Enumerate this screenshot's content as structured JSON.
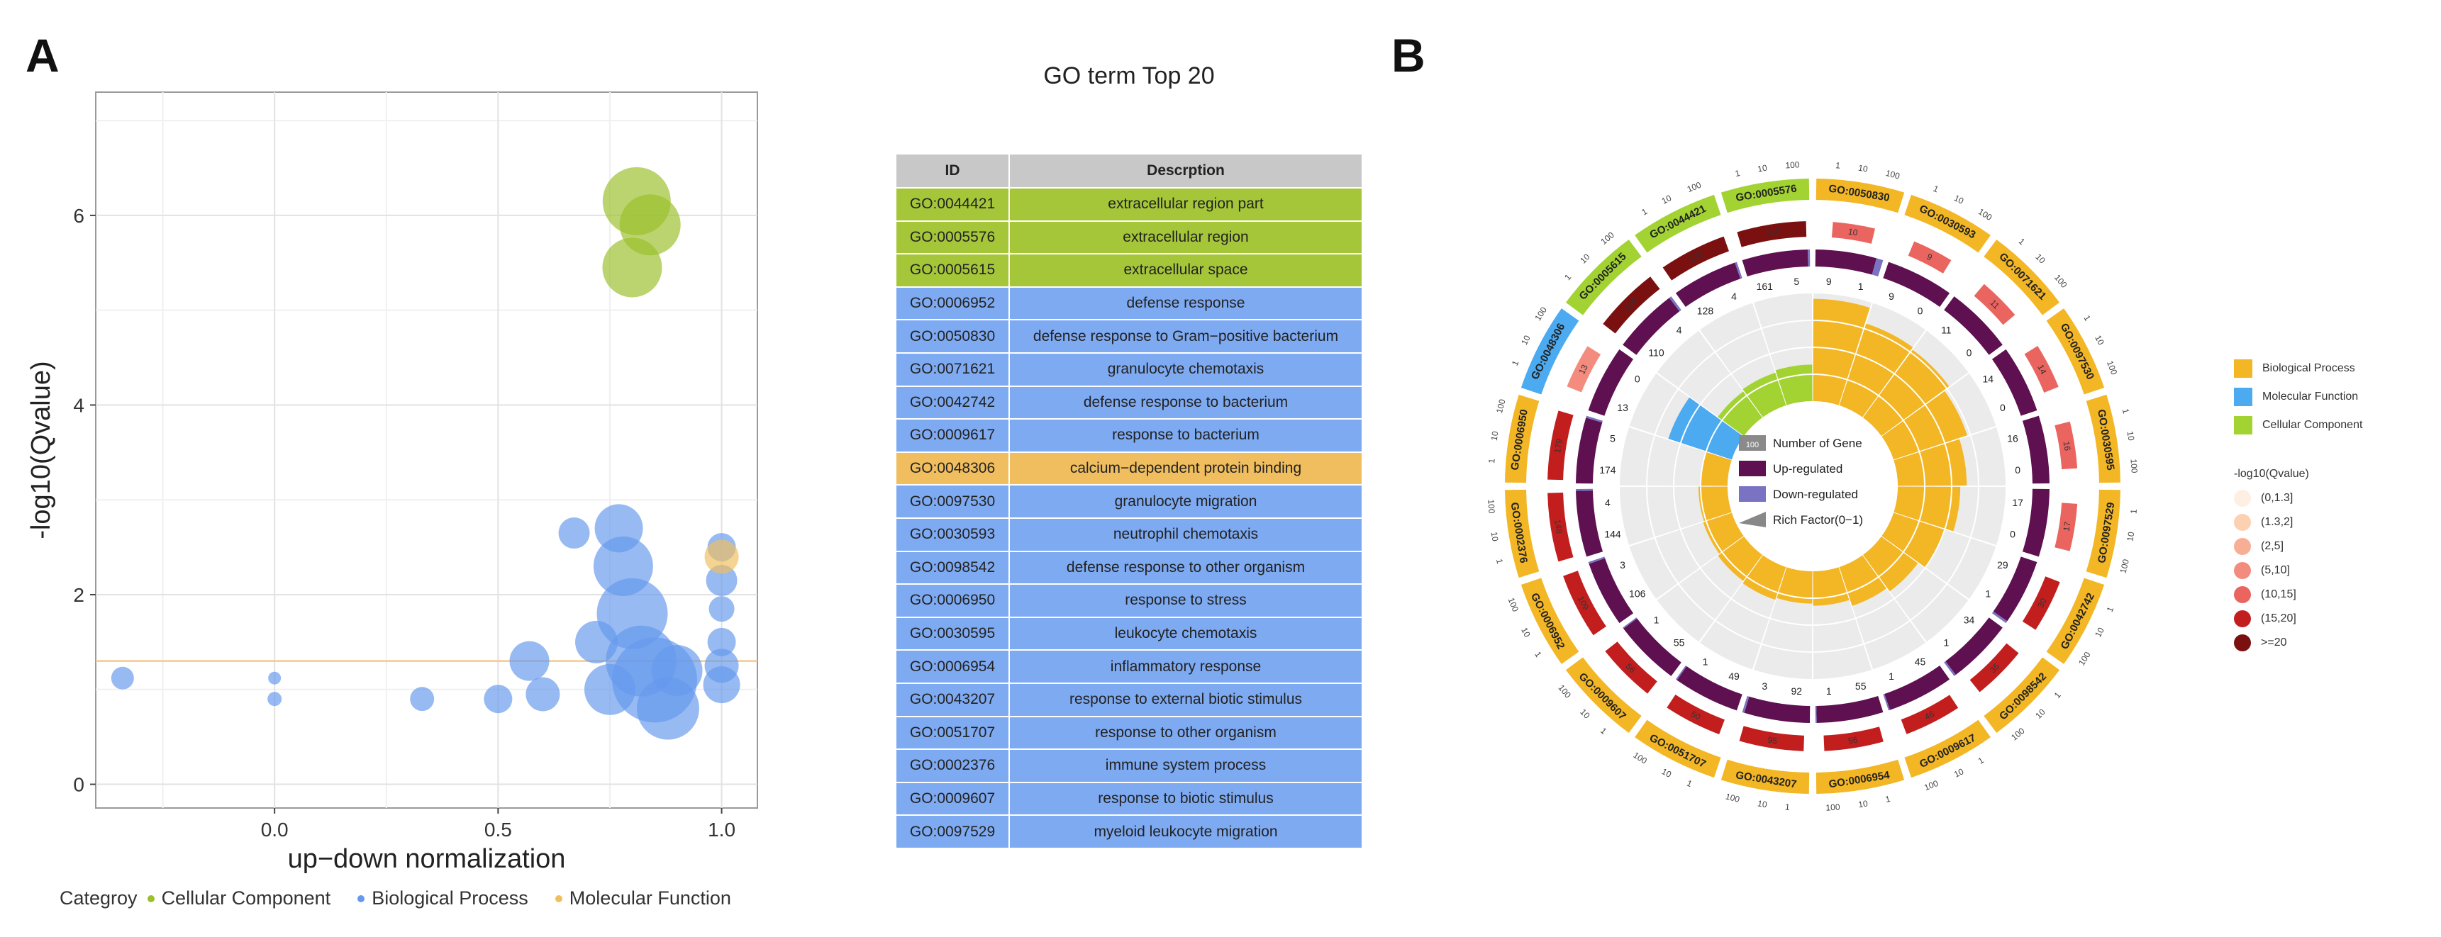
{
  "panelA": {
    "letter": "A",
    "legend_title": "Categroy",
    "legend": [
      {
        "label": "Cellular Component",
        "color": "#9bc02b"
      },
      {
        "label": "Biological Process",
        "color": "#6699ee"
      },
      {
        "label": "Molecular Function",
        "color": "#f0be5f"
      }
    ]
  },
  "panelB": {
    "letter": "B"
  },
  "chart_data": [
    {
      "type": "scatter",
      "title": "",
      "xlabel": "up−down normalization",
      "ylabel": "-log10(Qvalue)",
      "xlim": [
        -0.4,
        1.08
      ],
      "ylim": [
        -0.25,
        7.3
      ],
      "xticks": [
        "0.0",
        "0.5",
        "1.0"
      ],
      "xtick_values": [
        0,
        0.5,
        1
      ],
      "yticks": [
        "0",
        "2",
        "4",
        "6"
      ],
      "ytick_values": [
        0,
        2,
        4,
        6
      ],
      "threshold_y": 1.3,
      "grid": true,
      "points": [
        {
          "x": 0.81,
          "y": 6.15,
          "size": 48,
          "cat": "Cellular Component"
        },
        {
          "x": 0.84,
          "y": 5.9,
          "size": 43,
          "cat": "Cellular Component"
        },
        {
          "x": 0.8,
          "y": 5.45,
          "size": 42,
          "cat": "Cellular Component"
        },
        {
          "x": 1.0,
          "y": 2.4,
          "size": 24,
          "cat": "Molecular Function"
        },
        {
          "x": -0.34,
          "y": 1.12,
          "size": 16,
          "cat": "Biological Process"
        },
        {
          "x": 0.0,
          "y": 1.12,
          "size": 9,
          "cat": "Biological Process"
        },
        {
          "x": 0.0,
          "y": 0.9,
          "size": 10,
          "cat": "Biological Process"
        },
        {
          "x": 0.33,
          "y": 0.9,
          "size": 17,
          "cat": "Biological Process"
        },
        {
          "x": 0.5,
          "y": 0.9,
          "size": 20,
          "cat": "Biological Process"
        },
        {
          "x": 0.57,
          "y": 1.3,
          "size": 28,
          "cat": "Biological Process"
        },
        {
          "x": 0.6,
          "y": 0.95,
          "size": 24,
          "cat": "Biological Process"
        },
        {
          "x": 0.67,
          "y": 2.65,
          "size": 22,
          "cat": "Biological Process"
        },
        {
          "x": 0.72,
          "y": 1.5,
          "size": 30,
          "cat": "Biological Process"
        },
        {
          "x": 0.75,
          "y": 1.0,
          "size": 36,
          "cat": "Biological Process"
        },
        {
          "x": 0.77,
          "y": 2.7,
          "size": 34,
          "cat": "Biological Process"
        },
        {
          "x": 0.78,
          "y": 2.3,
          "size": 42,
          "cat": "Biological Process"
        },
        {
          "x": 0.8,
          "y": 1.8,
          "size": 50,
          "cat": "Biological Process"
        },
        {
          "x": 0.82,
          "y": 1.3,
          "size": 50,
          "cat": "Biological Process"
        },
        {
          "x": 0.85,
          "y": 1.1,
          "size": 60,
          "cat": "Biological Process"
        },
        {
          "x": 0.88,
          "y": 0.8,
          "size": 44,
          "cat": "Biological Process"
        },
        {
          "x": 0.9,
          "y": 1.2,
          "size": 36,
          "cat": "Biological Process"
        },
        {
          "x": 1.0,
          "y": 2.5,
          "size": 20,
          "cat": "Biological Process"
        },
        {
          "x": 1.0,
          "y": 2.15,
          "size": 22,
          "cat": "Biological Process"
        },
        {
          "x": 1.0,
          "y": 1.85,
          "size": 18,
          "cat": "Biological Process"
        },
        {
          "x": 1.0,
          "y": 1.5,
          "size": 20,
          "cat": "Biological Process"
        },
        {
          "x": 1.0,
          "y": 1.25,
          "size": 24,
          "cat": "Biological Process"
        },
        {
          "x": 1.0,
          "y": 1.05,
          "size": 26,
          "cat": "Biological Process"
        }
      ]
    },
    {
      "type": "table",
      "title": "GO term Top 20",
      "columns": [
        "ID",
        "Descrption"
      ],
      "rows": [
        {
          "id": "GO:0044421",
          "desc": "extracellular region part",
          "cat": "cc"
        },
        {
          "id": "GO:0005576",
          "desc": "extracellular region",
          "cat": "cc"
        },
        {
          "id": "GO:0005615",
          "desc": "extracellular space",
          "cat": "cc"
        },
        {
          "id": "GO:0006952",
          "desc": "defense response",
          "cat": "bp"
        },
        {
          "id": "GO:0050830",
          "desc": "defense response to Gram−positive bacterium",
          "cat": "bp"
        },
        {
          "id": "GO:0071621",
          "desc": "granulocyte chemotaxis",
          "cat": "bp"
        },
        {
          "id": "GO:0042742",
          "desc": "defense response to bacterium",
          "cat": "bp"
        },
        {
          "id": "GO:0009617",
          "desc": "response to bacterium",
          "cat": "bp"
        },
        {
          "id": "GO:0048306",
          "desc": "calcium−dependent protein binding",
          "cat": "mf"
        },
        {
          "id": "GO:0097530",
          "desc": "granulocyte migration",
          "cat": "bp"
        },
        {
          "id": "GO:0030593",
          "desc": "neutrophil chemotaxis",
          "cat": "bp"
        },
        {
          "id": "GO:0098542",
          "desc": "defense response to other organism",
          "cat": "bp"
        },
        {
          "id": "GO:0006950",
          "desc": "response to stress",
          "cat": "bp"
        },
        {
          "id": "GO:0030595",
          "desc": "leukocyte chemotaxis",
          "cat": "bp"
        },
        {
          "id": "GO:0006954",
          "desc": "inflammatory response",
          "cat": "bp"
        },
        {
          "id": "GO:0043207",
          "desc": "response to external biotic stimulus",
          "cat": "bp"
        },
        {
          "id": "GO:0051707",
          "desc": "response to other organism",
          "cat": "bp"
        },
        {
          "id": "GO:0002376",
          "desc": "immune system process",
          "cat": "bp"
        },
        {
          "id": "GO:0009607",
          "desc": "response to biotic stimulus",
          "cat": "bp"
        },
        {
          "id": "GO:0097529",
          "desc": "myeloid leukocyte migration",
          "cat": "bp"
        }
      ]
    },
    {
      "type": "circular",
      "title": "",
      "colors": {
        "bp": "#f3b624",
        "mf": "#4baaf0",
        "cc": "#a2d332",
        "up": "#5e1050",
        "down": "#7a73c4"
      },
      "scale_labels": [
        "1",
        "10",
        "100"
      ],
      "terms": [
        {
          "id": "GO:0050830",
          "cat": "bp",
          "count": 10,
          "q": 4,
          "up": 9,
          "down": 1,
          "rich": 0.95
        },
        {
          "id": "GO:0030593",
          "cat": "bp",
          "count": 9,
          "q": 4,
          "up": 9,
          "down": 0,
          "rich": 0.8
        },
        {
          "id": "GO:0071621",
          "cat": "bp",
          "count": 11,
          "q": 4,
          "up": 11,
          "down": 0,
          "rich": 0.78
        },
        {
          "id": "GO:0097530",
          "cat": "bp",
          "count": 14,
          "q": 4,
          "up": 14,
          "down": 0,
          "rich": 0.72
        },
        {
          "id": "GO:0030595",
          "cat": "bp",
          "count": 16,
          "q": 4,
          "up": 16,
          "down": 0,
          "rich": 0.64
        },
        {
          "id": "GO:0097529",
          "cat": "bp",
          "count": 17,
          "q": 4,
          "up": 17,
          "down": 0,
          "rich": 0.58
        },
        {
          "id": "GO:0042742",
          "cat": "bp",
          "count": 30,
          "q": 5,
          "up": 29,
          "down": 1,
          "rich": 0.5
        },
        {
          "id": "GO:0098542",
          "cat": "bp",
          "count": 35,
          "q": 5,
          "up": 34,
          "down": 1,
          "rich": 0.42
        },
        {
          "id": "GO:0009617",
          "cat": "bp",
          "count": 46,
          "q": 5,
          "up": 45,
          "down": 1,
          "rich": 0.38
        },
        {
          "id": "GO:0006954",
          "cat": "bp",
          "count": 56,
          "q": 5,
          "up": 55,
          "down": 1,
          "rich": 0.32
        },
        {
          "id": "GO:0043207",
          "cat": "bp",
          "count": 95,
          "q": 5,
          "up": 92,
          "down": 3,
          "rich": 0.3
        },
        {
          "id": "GO:0051707",
          "cat": "bp",
          "count": 50,
          "q": 5,
          "up": 49,
          "down": 1,
          "rich": 0.32
        },
        {
          "id": "GO:0009607",
          "cat": "bp",
          "count": 56,
          "q": 5,
          "up": 55,
          "down": 1,
          "rich": 0.3
        },
        {
          "id": "GO:0006952",
          "cat": "bp",
          "count": 109,
          "q": 5,
          "up": 106,
          "down": 3,
          "rich": 0.28
        },
        {
          "id": "GO:0002376",
          "cat": "bp",
          "count": 148,
          "q": 5,
          "up": 144,
          "down": 4,
          "rich": 0.27
        },
        {
          "id": "GO:0006950",
          "cat": "bp",
          "count": 179,
          "q": 5,
          "up": 174,
          "down": 5,
          "rich": 0.25
        },
        {
          "id": "GO:0048306",
          "cat": "mf",
          "count": 13,
          "q": 3,
          "up": 13,
          "down": 0,
          "rich": 0.62
        },
        {
          "id": "GO:0005615",
          "cat": "cc",
          "count": 114,
          "q": 6,
          "up": 110,
          "down": 4,
          "rich": 0.3
        },
        {
          "id": "GO:0044421",
          "cat": "cc",
          "count": 132,
          "q": 6,
          "up": 128,
          "down": 4,
          "rich": 0.32
        },
        {
          "id": "GO:0005576",
          "cat": "cc",
          "count": 166,
          "q": 6,
          "up": 161,
          "down": 5,
          "rich": 0.34
        }
      ],
      "center_legend": [
        {
          "label": "Number of Gene",
          "color": "#8a8a8a",
          "tag": "100"
        },
        {
          "label": "Up-regulated",
          "color": "#5e1050"
        },
        {
          "label": "Down-regulated",
          "color": "#7a73c4"
        },
        {
          "label": "Rich Factor(0−1)",
          "color": "#888888"
        }
      ],
      "legend_categories": [
        {
          "label": "Biological Process",
          "color": "#f3b624"
        },
        {
          "label": "Molecular Function",
          "color": "#4baaf0"
        },
        {
          "label": "Cellular Component",
          "color": "#a2d332"
        }
      ],
      "q_legend_title": "-log10(Qvalue)",
      "q_legend": [
        {
          "label": "(0,1.3]",
          "color": "#fdf0e3"
        },
        {
          "label": "(1.3,2]",
          "color": "#fcd1b2"
        },
        {
          "label": "(2,5]",
          "color": "#f8ae95"
        },
        {
          "label": "(5,10]",
          "color": "#f38c7e"
        },
        {
          "label": "(10,15]",
          "color": "#ea6560"
        },
        {
          "label": "(15,20]",
          "color": "#c21e1e"
        },
        {
          "label": ">=20",
          "color": "#7a1010"
        }
      ]
    }
  ]
}
